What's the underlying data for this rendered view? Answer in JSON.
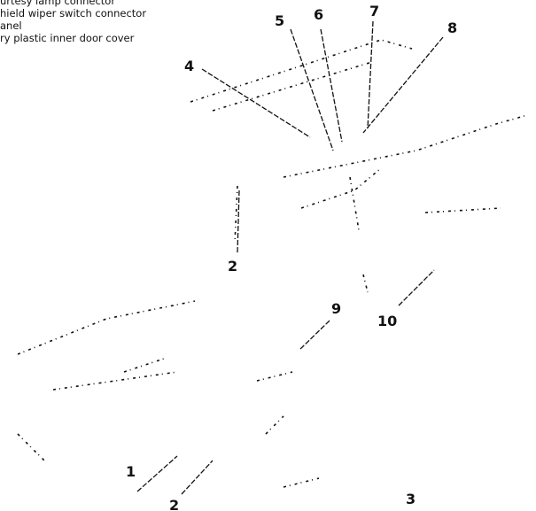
{
  "legend": [
    "urtesy lamp connector",
    "hield wiper switch connector",
    "anel",
    "ry plastic inner door cover"
  ],
  "callouts": [
    {
      "label": "5"
    },
    {
      "label": "6"
    },
    {
      "label": "7"
    },
    {
      "label": "8"
    },
    {
      "label": "4"
    },
    {
      "label": "2"
    },
    {
      "label": "9"
    },
    {
      "label": "10"
    },
    {
      "label": "1"
    },
    {
      "label": "2"
    },
    {
      "label": "3"
    }
  ]
}
